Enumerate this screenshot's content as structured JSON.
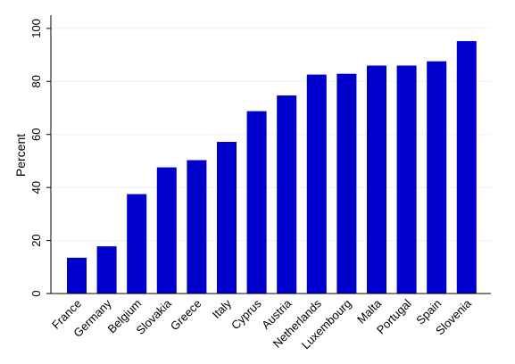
{
  "chart_data": {
    "type": "bar",
    "title": "",
    "xlabel": "",
    "ylabel": "Percent",
    "ylim": [
      0,
      105
    ],
    "yticks": [
      0,
      20,
      40,
      60,
      80,
      100
    ],
    "grid": true,
    "legend": "none",
    "bar_color": "#0000cc",
    "grid_color": "#eaf2f3",
    "categories": [
      "France",
      "Germany",
      "Belgium",
      "Slovakia",
      "Greece",
      "Italy",
      "Cyprus",
      "Austria",
      "Netherlands",
      "Luxembourg",
      "Malta",
      "Portugal",
      "Spain",
      "Slovenia"
    ],
    "values": [
      13.5,
      17.8,
      37.5,
      47.6,
      50.3,
      57.2,
      68.8,
      74.7,
      82.6,
      82.9,
      86.0,
      86.0,
      87.6,
      95.2
    ]
  }
}
